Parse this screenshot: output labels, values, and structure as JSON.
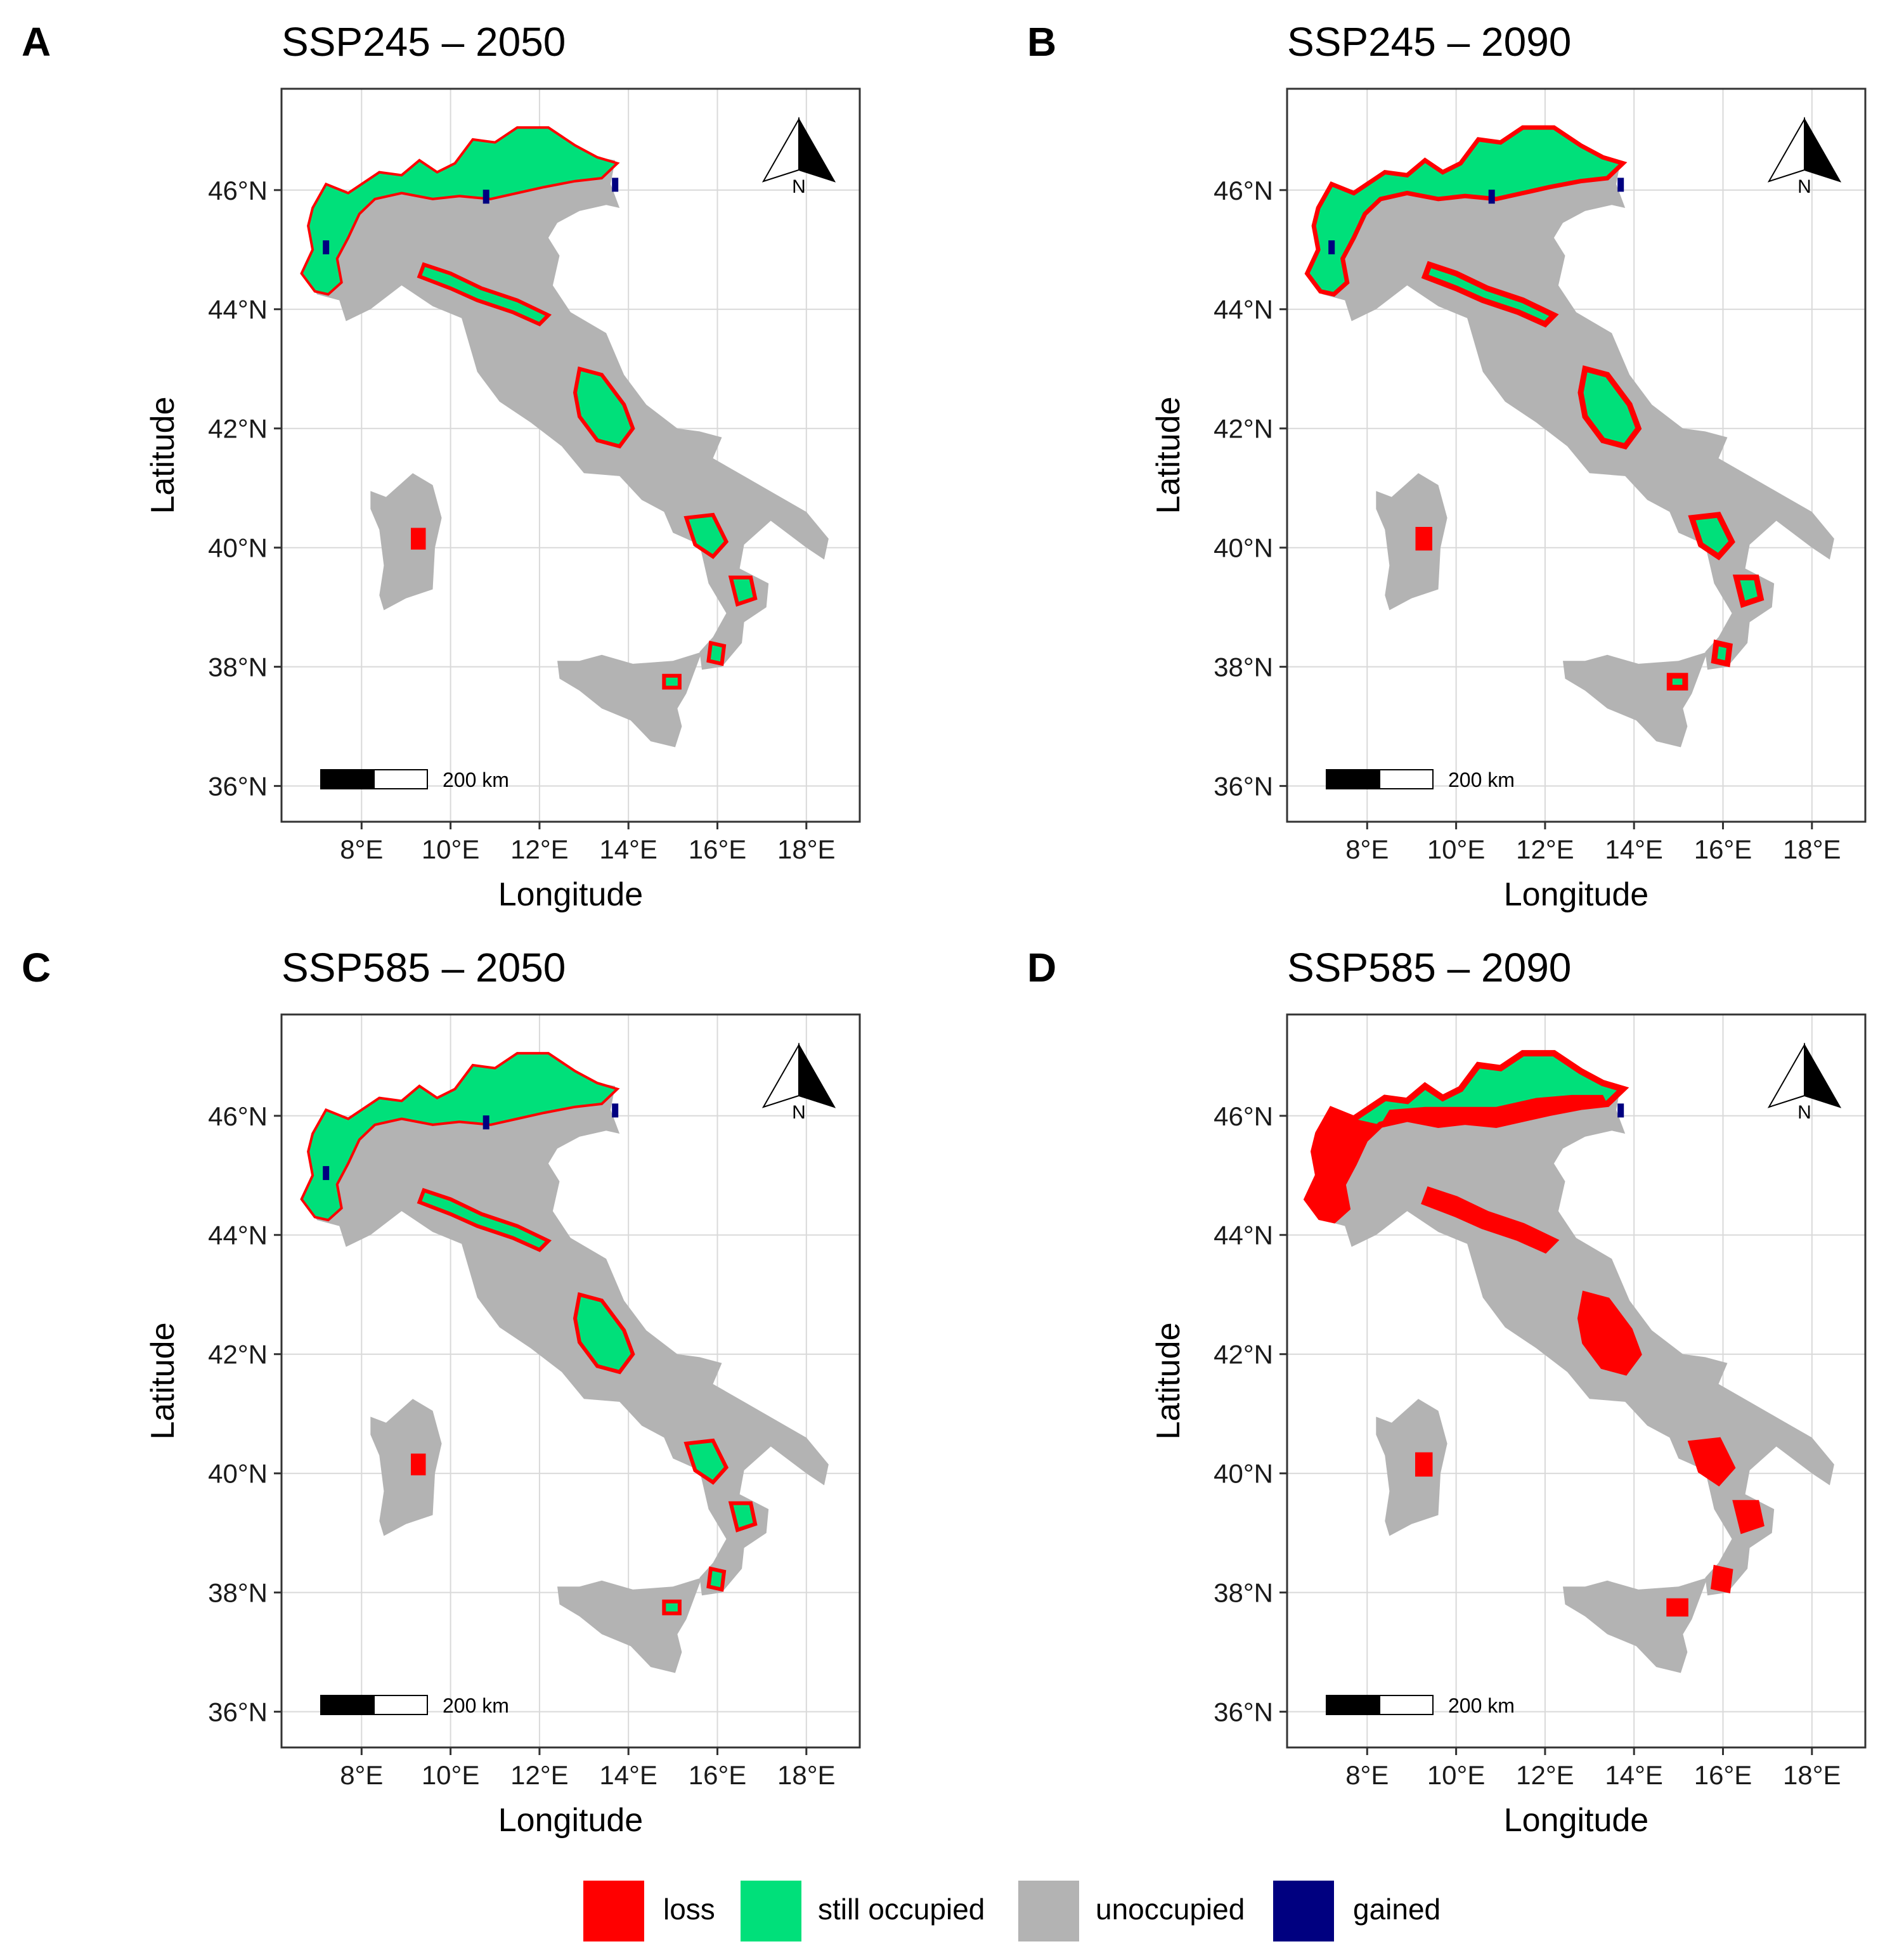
{
  "panels": [
    {
      "letter": "A",
      "title": "SSP245 – 2050",
      "scenario": "SSP245",
      "year": 2050,
      "loss_level": 1
    },
    {
      "letter": "B",
      "title": "SSP245 – 2090",
      "scenario": "SSP245",
      "year": 2090,
      "loss_level": 2
    },
    {
      "letter": "C",
      "title": "SSP585 – 2050",
      "scenario": "SSP585",
      "year": 2050,
      "loss_level": 1
    },
    {
      "letter": "D",
      "title": "SSP585 – 2090",
      "scenario": "SSP585",
      "year": 2090,
      "loss_level": 3
    }
  ],
  "axes": {
    "xlabel": "Longitude",
    "ylabel": "Latitude",
    "xlim": [
      6.2,
      19.2
    ],
    "ylim": [
      35.4,
      47.7
    ],
    "x_ticks": [
      8,
      10,
      12,
      14,
      16,
      18
    ],
    "y_ticks": [
      36,
      38,
      40,
      42,
      44,
      46
    ],
    "x_tick_labels": [
      "8°E",
      "10°E",
      "12°E",
      "14°E",
      "16°E",
      "18°E"
    ],
    "y_tick_labels": [
      "36°N",
      "38°N",
      "40°N",
      "42°N",
      "44°N",
      "46°N"
    ],
    "grid": true
  },
  "scale_bar": {
    "label": "200 km"
  },
  "north_arrow": {
    "label": "N"
  },
  "legend": [
    {
      "label": "loss",
      "color": "#ff0000"
    },
    {
      "label": "still occupied",
      "color": "#00e07a"
    },
    {
      "label": "unoccupied",
      "color": "#b3b3b3"
    },
    {
      "label": "gained",
      "color": "#000080"
    }
  ],
  "colors": {
    "loss": "#ff0000",
    "still_occupied": "#00e07a",
    "unoccupied": "#b3b3b3",
    "gained": "#000080"
  }
}
